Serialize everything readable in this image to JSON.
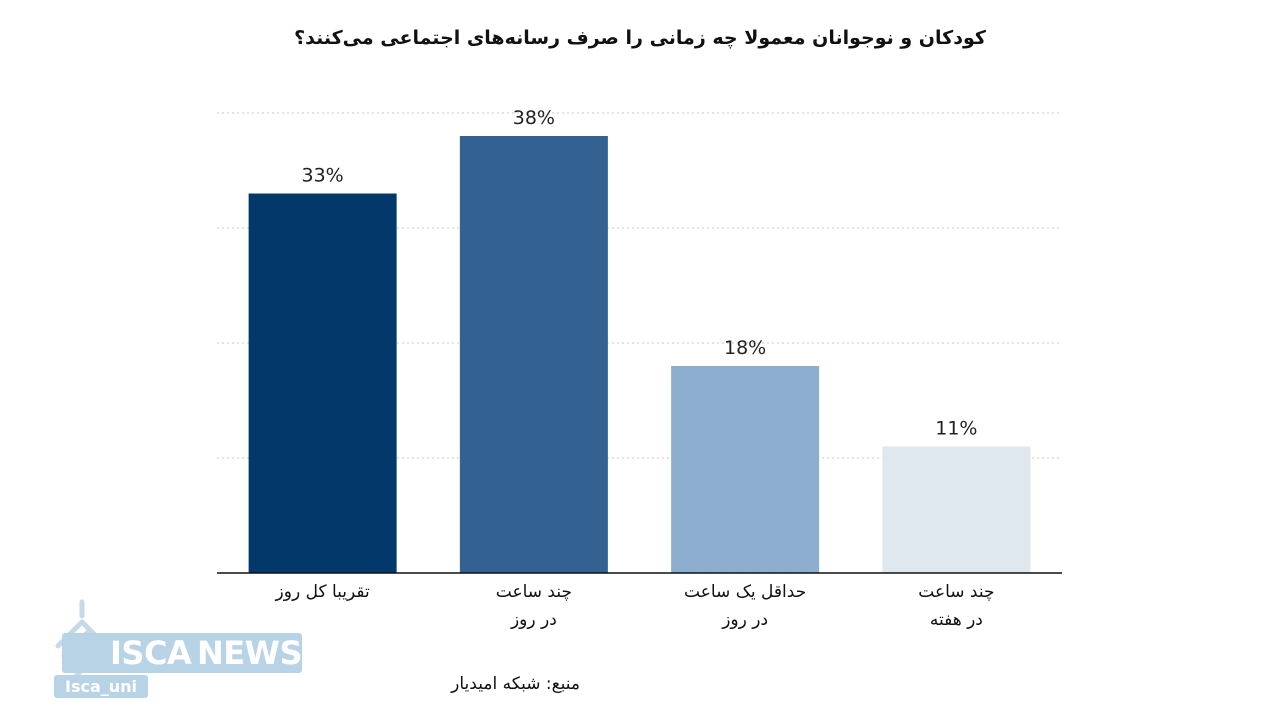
{
  "chart_data": {
    "type": "bar",
    "title": "کودکان و نوجوانان معمولا چه زمانی را صرف رسانه‌های اجتماعی می‌کنند؟",
    "categories": [
      [
        "تقریبا کل روز"
      ],
      [
        "چند ساعت",
        "در روز"
      ],
      [
        "حداقل یک ساعت",
        "در روز"
      ],
      [
        "چند ساعت",
        "در هفته"
      ]
    ],
    "values": [
      33,
      38,
      18,
      11
    ],
    "value_labels": [
      "33%",
      "38%",
      "18%",
      "11%"
    ],
    "bar_colors": [
      "#03386b",
      "#336194",
      "#8eaed0",
      "#dfe7ef"
    ],
    "ylim": [
      0,
      40
    ],
    "grid": true,
    "xlabel": "",
    "ylabel": ""
  },
  "source": "منبع: شبکه امیدیار",
  "logo": {
    "brand_left": "ISCA",
    "brand_right": "NEWS",
    "handle": "Isca_uni"
  }
}
